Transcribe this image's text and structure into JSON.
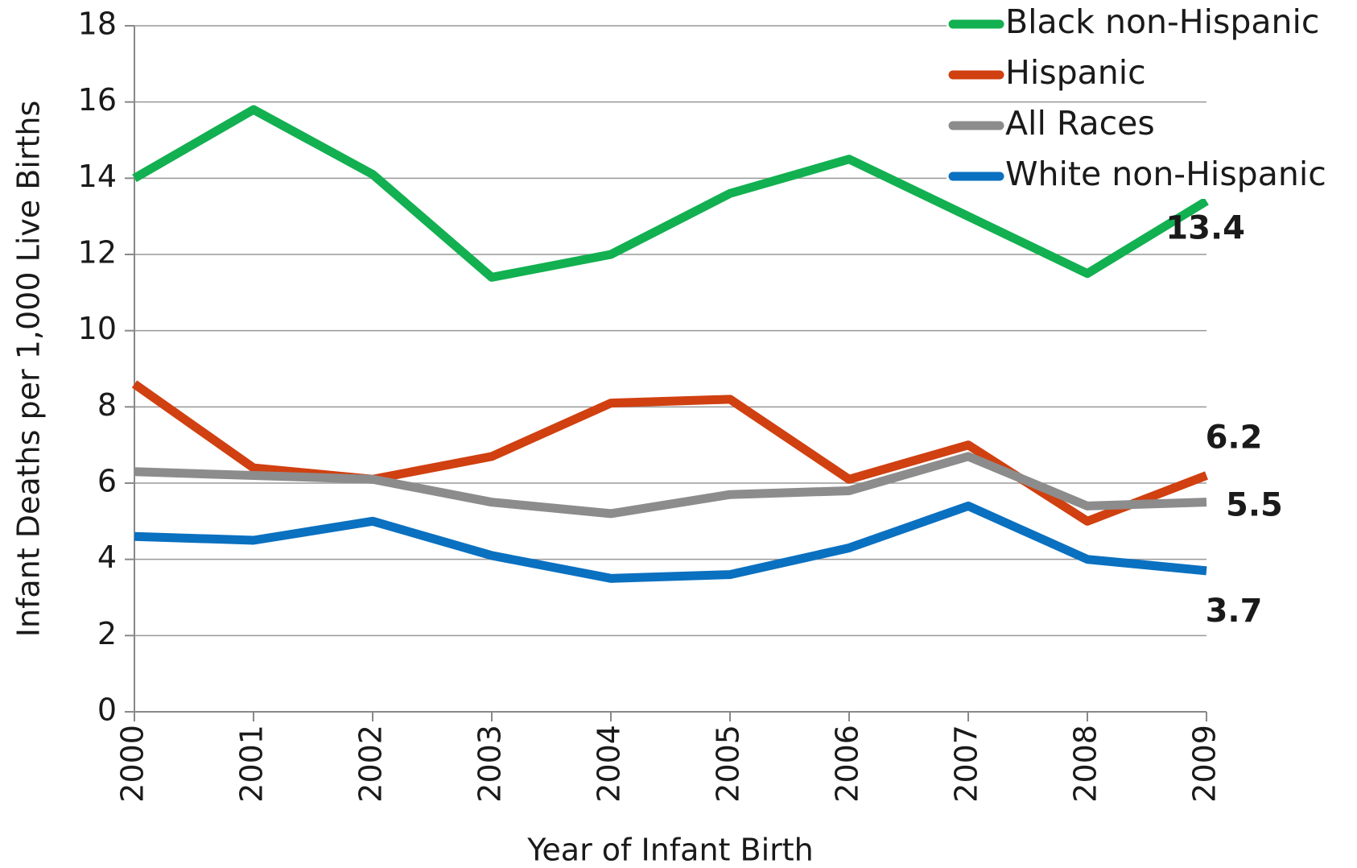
{
  "chart_data": {
    "type": "line",
    "x_label": "Year of Infant Birth",
    "y_label": "Infant Deaths per 1,000 Live Births",
    "categories": [
      "2000",
      "2001",
      "2002",
      "2003",
      "2004",
      "2005",
      "2006",
      "2007",
      "2008",
      "2009"
    ],
    "series": [
      {
        "name": "Black non-Hispanic",
        "color": "#12b050",
        "label_color": "#12b050",
        "values": [
          14.0,
          15.8,
          14.1,
          11.4,
          12.0,
          13.6,
          14.5,
          13.0,
          11.5,
          13.4
        ]
      },
      {
        "name": "Hispanic",
        "color": "#d04010",
        "label_color": "#c00000",
        "values": [
          8.6,
          6.4,
          6.1,
          6.7,
          8.1,
          8.2,
          6.1,
          7.0,
          5.0,
          6.2
        ]
      },
      {
        "name": "All Races",
        "color": "#8c8c8c",
        "label_color": "#404040",
        "values": [
          6.3,
          6.2,
          6.1,
          5.5,
          5.2,
          5.7,
          5.8,
          6.7,
          5.4,
          5.5
        ]
      },
      {
        "name": "White non-Hispanic",
        "color": "#0a70c0",
        "label_color": "#0a70c0",
        "values": [
          4.6,
          4.5,
          5.0,
          4.1,
          3.5,
          3.6,
          4.3,
          5.4,
          4.0,
          3.7
        ]
      }
    ],
    "ylim": [
      0,
      18
    ],
    "yticks": [
      0,
      2,
      4,
      6,
      8,
      10,
      12,
      14,
      16,
      18
    ],
    "grid": true,
    "legend": "top-right"
  }
}
